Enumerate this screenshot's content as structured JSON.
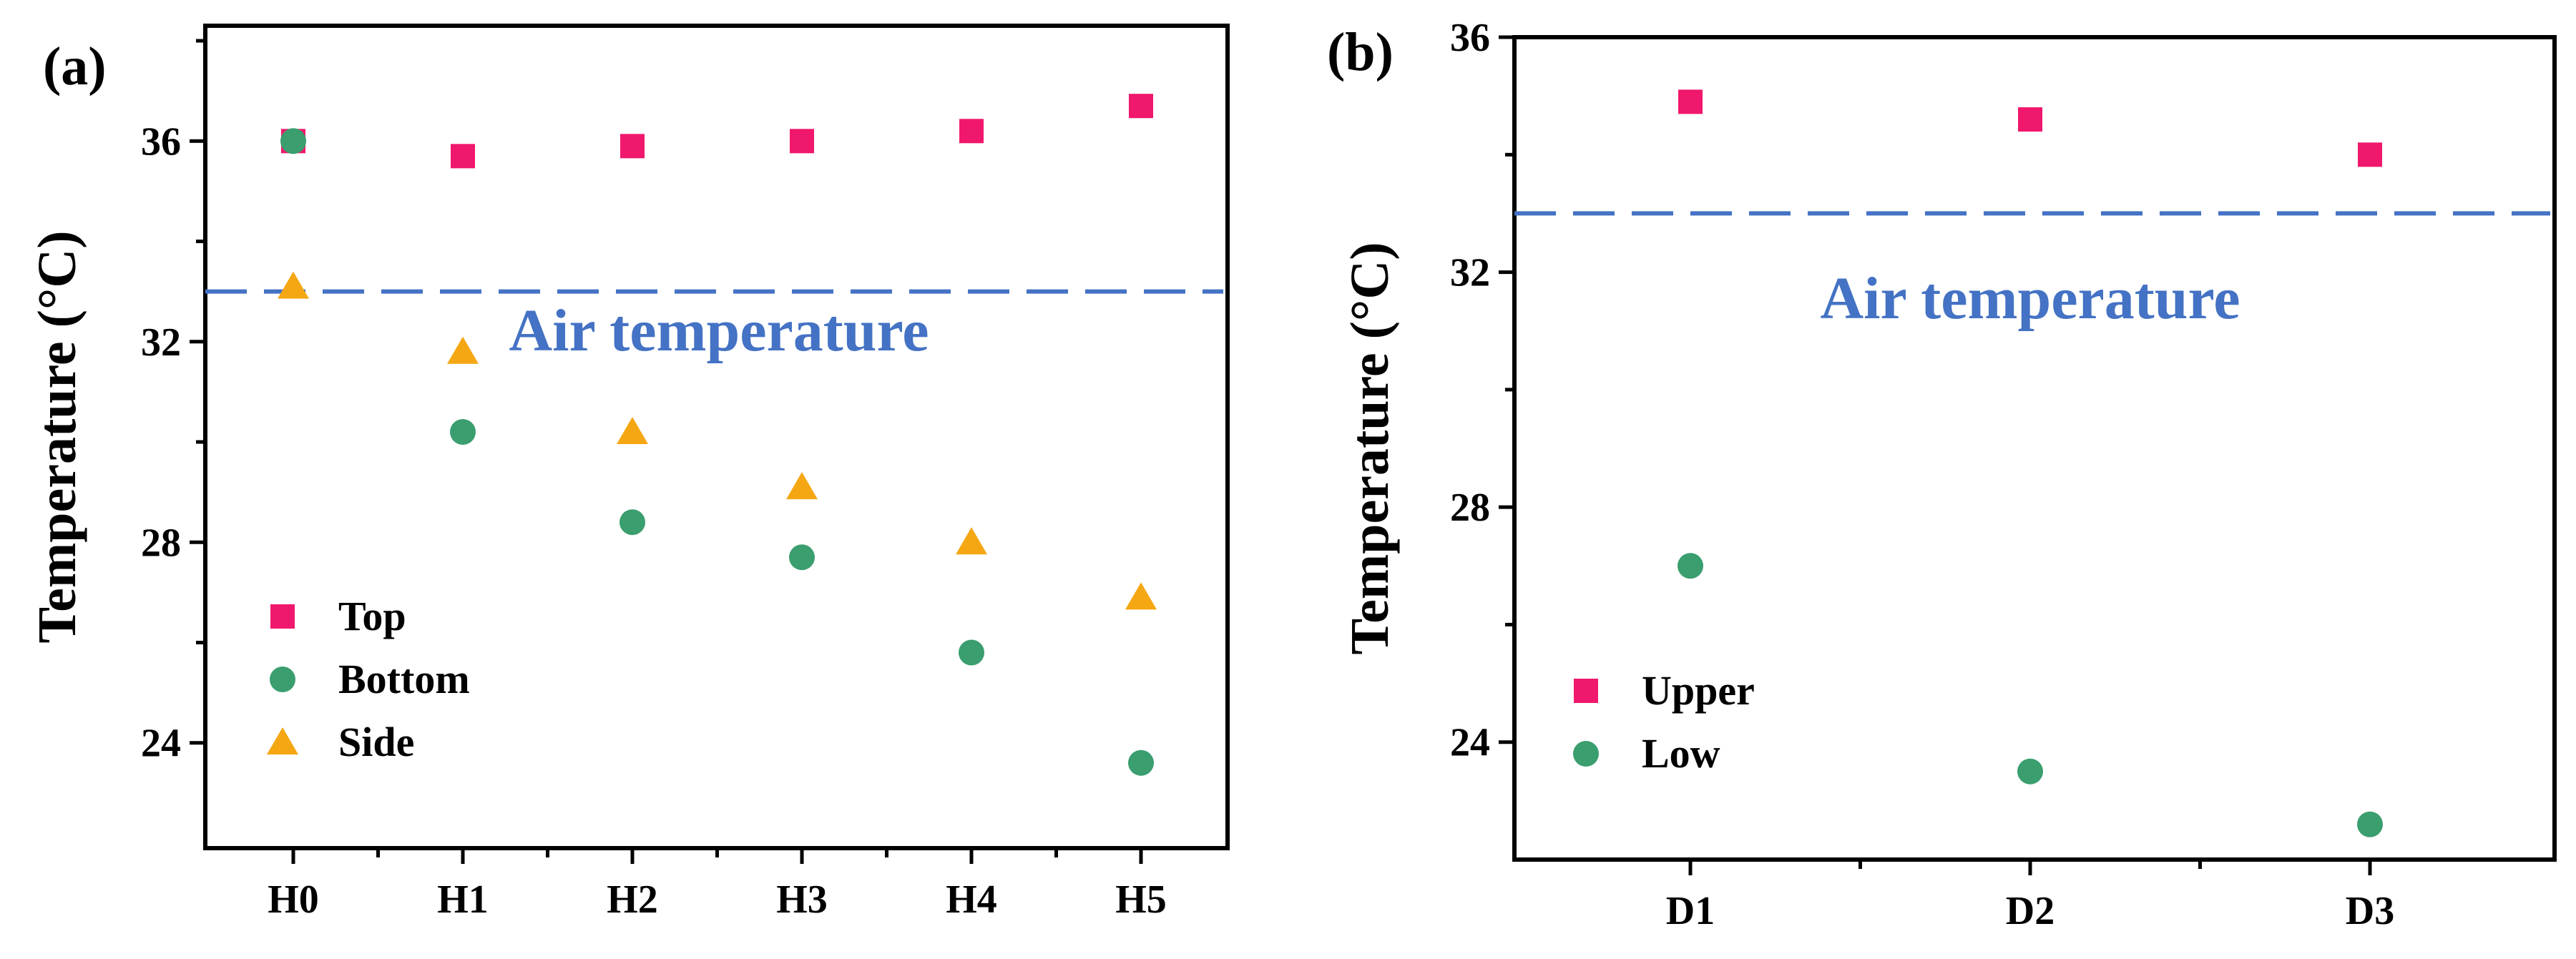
{
  "colors": {
    "top": "#F0186C",
    "bottom": "#3A9E6F",
    "side": "#F5A713",
    "air_line": "#4472C4",
    "axis": "#000000"
  },
  "chart_data": [
    {
      "type": "scatter",
      "panel_label": "(a)",
      "ylabel": "Temperature (°C)",
      "xlabel": "",
      "categories": [
        "H0",
        "H1",
        "H2",
        "H3",
        "H4",
        "H5"
      ],
      "ylim": [
        21.9,
        38.3
      ],
      "yticks": [
        24,
        28,
        32,
        36
      ],
      "yticks_labels": [
        "24",
        "28",
        "32",
        "36"
      ],
      "minor_yticks": [
        26,
        30,
        34,
        38
      ],
      "reference_line": {
        "value": 33.0,
        "label": "Air temperature",
        "style": "dashed"
      },
      "legend_position": "bottom-left",
      "series": [
        {
          "name": "Top",
          "marker": "square",
          "color_key": "top",
          "values": [
            36.0,
            35.7,
            35.9,
            36.0,
            36.2,
            36.7
          ]
        },
        {
          "name": "Bottom",
          "marker": "circle",
          "color_key": "bottom",
          "values": [
            36.0,
            30.2,
            28.4,
            27.7,
            25.8,
            23.6
          ]
        },
        {
          "name": "Side",
          "marker": "triangle",
          "color_key": "side",
          "values": [
            33.1,
            31.8,
            30.2,
            29.1,
            28.0,
            26.9
          ]
        }
      ]
    },
    {
      "type": "scatter",
      "panel_label": "(b)",
      "ylabel": "Temperature (°C)",
      "xlabel": "",
      "categories": [
        "D1",
        "D2",
        "D3"
      ],
      "ylim": [
        22.0,
        36.0
      ],
      "yticks": [
        24,
        28,
        32,
        36
      ],
      "yticks_labels": [
        "24",
        "28",
        "32",
        "36"
      ],
      "minor_yticks": [
        26,
        30,
        34
      ],
      "reference_line": {
        "value": 33.0,
        "label": "Air temperature",
        "style": "dashed"
      },
      "legend_position": "bottom-left",
      "series": [
        {
          "name": "Upper",
          "marker": "square",
          "color_key": "top",
          "values": [
            34.9,
            34.6,
            34.0
          ]
        },
        {
          "name": "Low",
          "marker": "circle",
          "color_key": "bottom",
          "values": [
            27.0,
            23.5,
            22.6
          ]
        }
      ]
    }
  ]
}
